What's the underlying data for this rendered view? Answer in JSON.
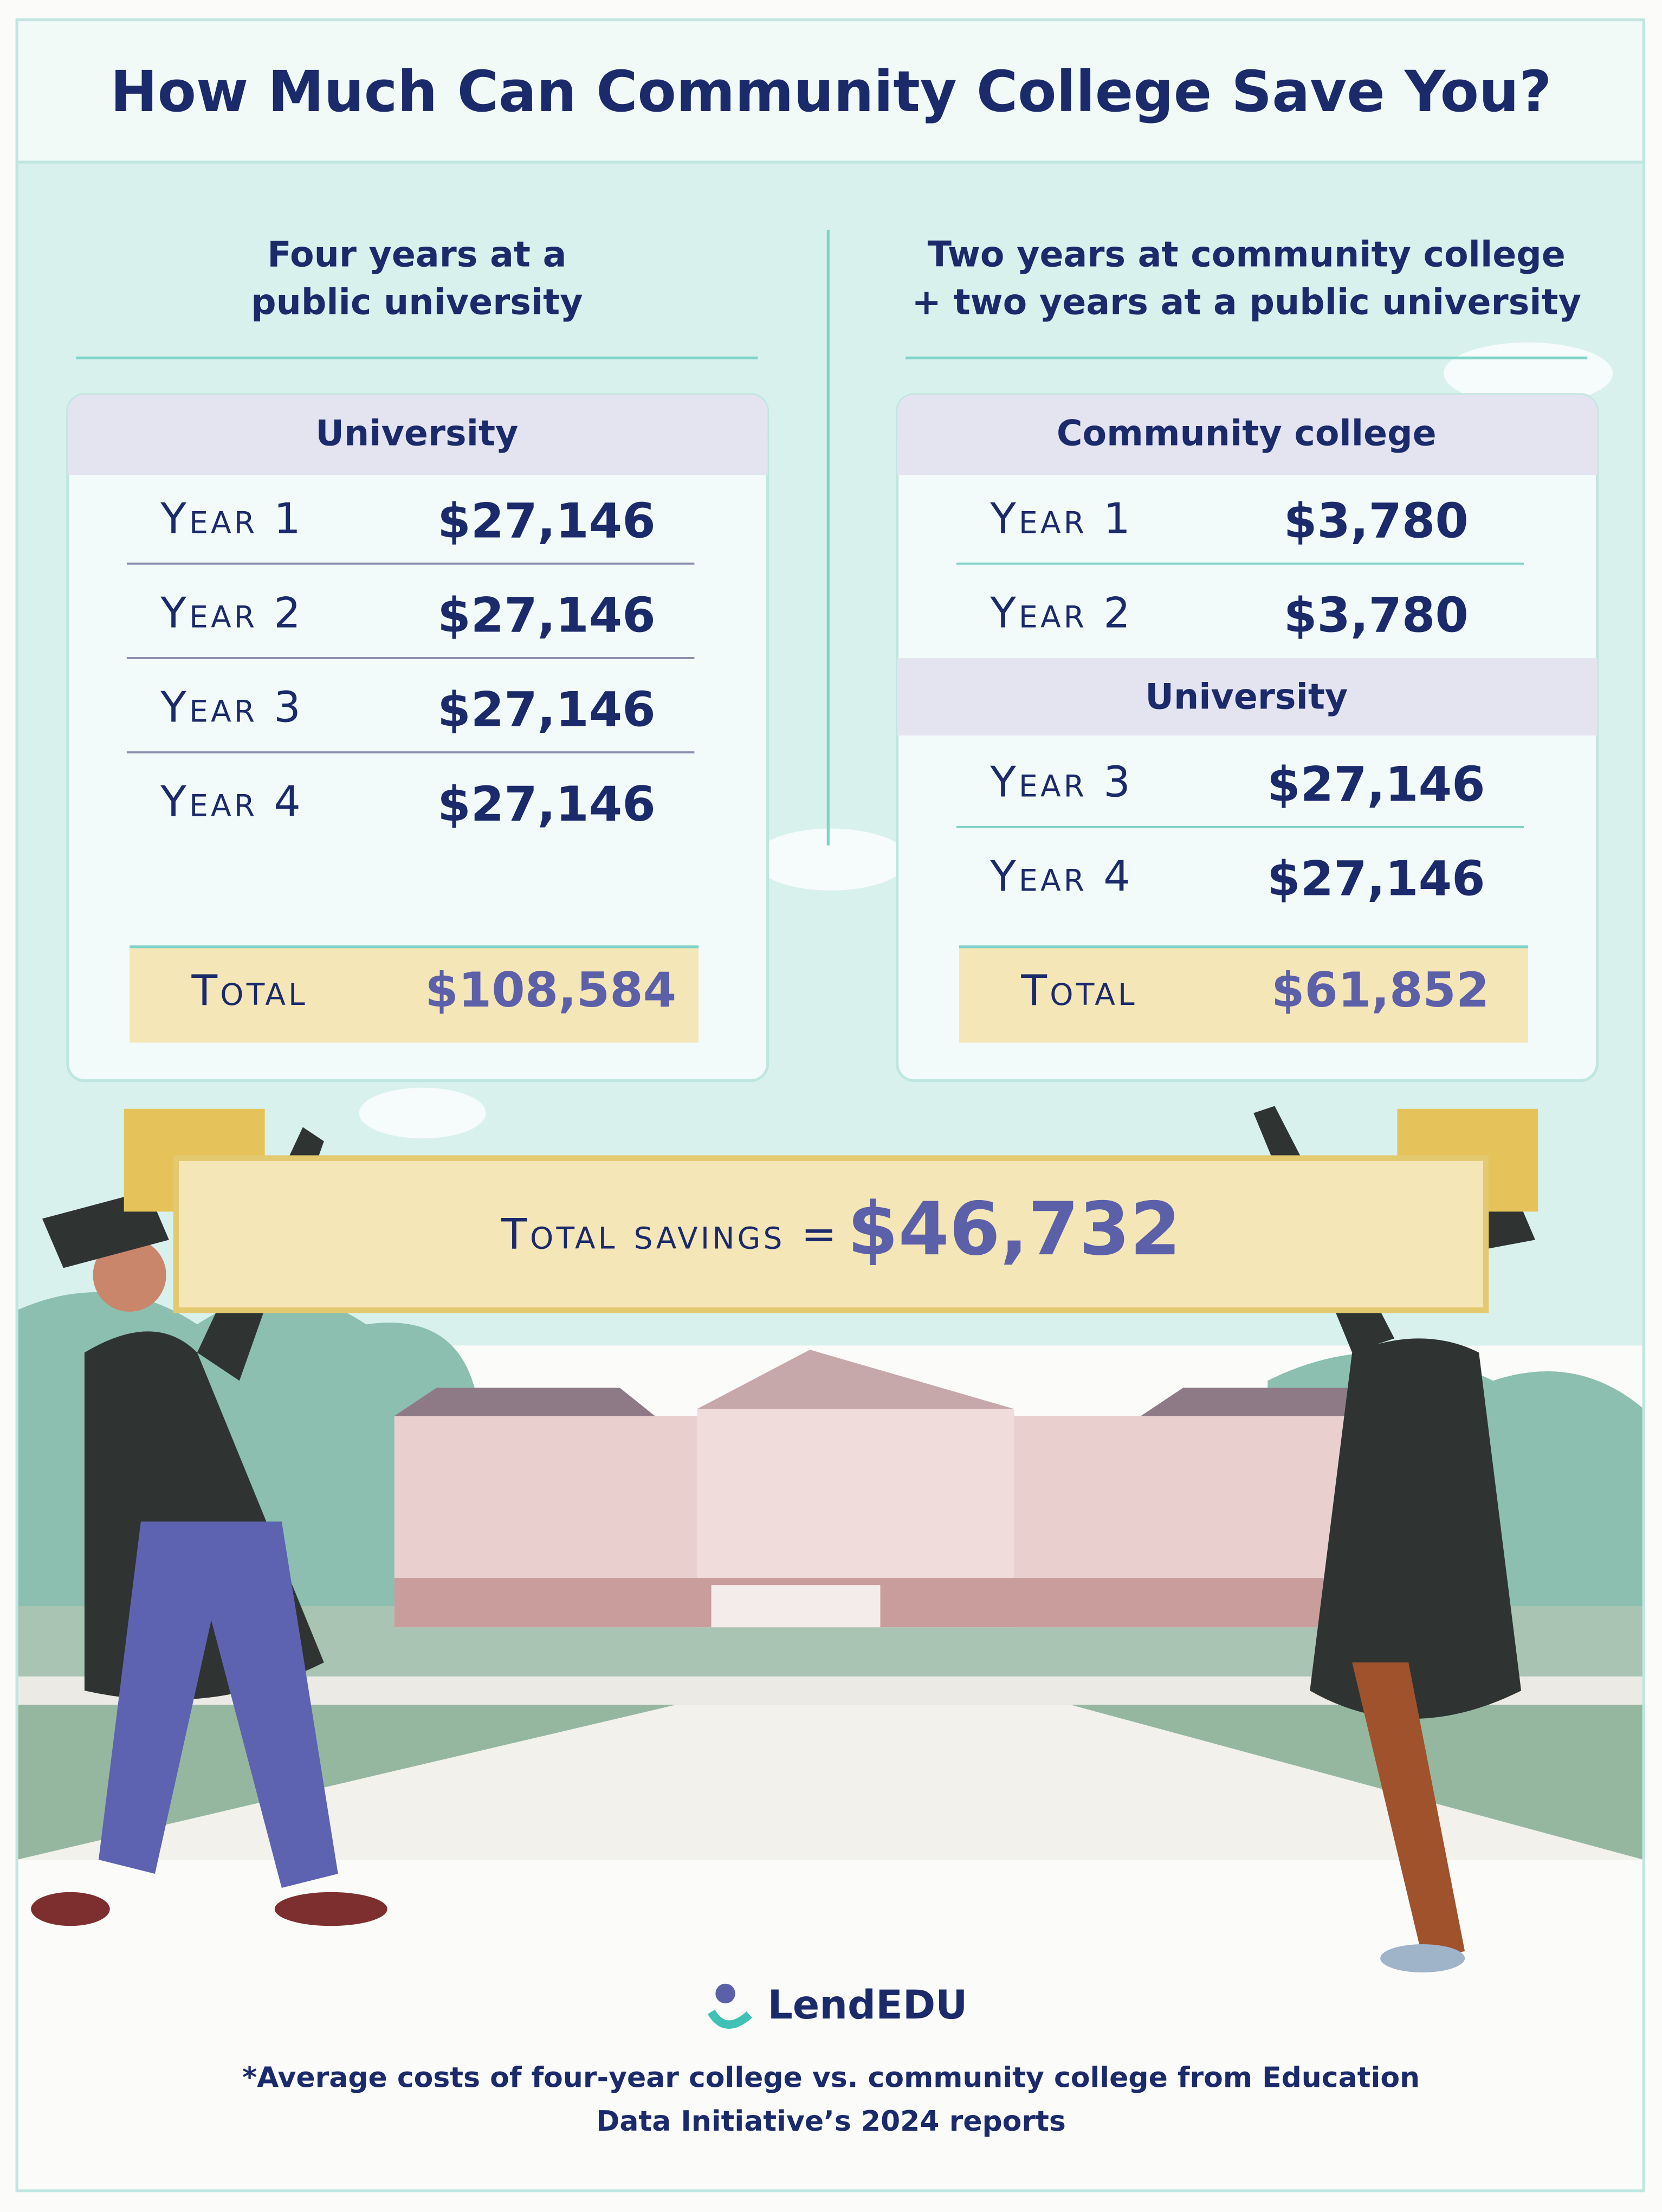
{
  "title": "How Much Can Community College Save You?",
  "left": {
    "heading": [
      "Four years at a",
      "public university"
    ],
    "sections": [
      {
        "title": "University",
        "rows": [
          {
            "label": "Year 1",
            "value": "$27,146"
          },
          {
            "label": "Year 2",
            "value": "$27,146"
          },
          {
            "label": "Year 3",
            "value": "$27,146"
          },
          {
            "label": "Year 4",
            "value": "$27,146"
          }
        ]
      }
    ],
    "total": {
      "label": "Total",
      "value": "$108,584"
    }
  },
  "right": {
    "heading": [
      "Two years at community college",
      "+ two years at a public university"
    ],
    "sections": [
      {
        "title": "Community college",
        "rows": [
          {
            "label": "Year 1",
            "value": "$3,780"
          },
          {
            "label": "Year 2",
            "value": "$3,780"
          }
        ]
      },
      {
        "title": "University",
        "rows": [
          {
            "label": "Year 3",
            "value": "$27,146"
          },
          {
            "label": "Year 4",
            "value": "$27,146"
          }
        ]
      }
    ],
    "total": {
      "label": "Total",
      "value": "$61,852"
    }
  },
  "savings": {
    "label": "Total savings =",
    "value": "$46,732"
  },
  "brand": "LendEDU",
  "footnote": [
    "*Average costs of four-year college vs. community college from Education",
    "Data Initiative’s 2024 reports"
  ]
}
